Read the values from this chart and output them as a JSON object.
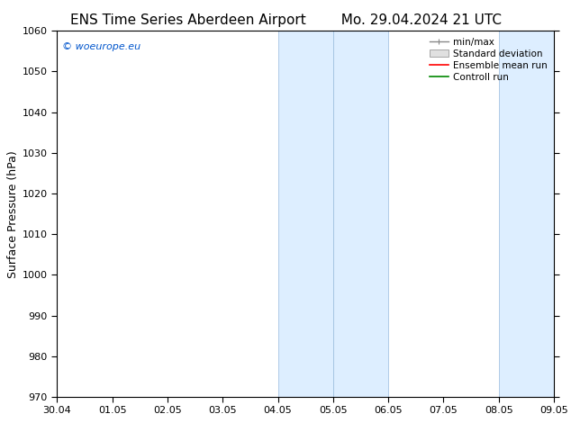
{
  "title_left": "ENS Time Series Aberdeen Airport",
  "title_right": "Mo. 29.04.2024 21 UTC",
  "ylabel": "Surface Pressure (hPa)",
  "ylim": [
    970,
    1060
  ],
  "yticks": [
    970,
    980,
    990,
    1000,
    1010,
    1020,
    1030,
    1040,
    1050,
    1060
  ],
  "xtick_labels": [
    "30.04",
    "01.05",
    "02.05",
    "03.05",
    "04.05",
    "05.05",
    "06.05",
    "07.05",
    "08.05",
    "09.05"
  ],
  "n_ticks": 10,
  "watermark": "© woeurope.eu",
  "watermark_color": "#0055cc",
  "shaded_regions": [
    {
      "xstart": 4,
      "xend": 5
    },
    {
      "xstart": 5,
      "xend": 6
    },
    {
      "xstart": 8,
      "xend": 9
    },
    {
      "xstart": 9,
      "xend": 9.5
    }
  ],
  "shaded_color": "#ddeeff",
  "shaded_edge_color": "#99bbdd",
  "legend_labels": [
    "min/max",
    "Standard deviation",
    "Ensemble mean run",
    "Controll run"
  ],
  "minmax_color": "#888888",
  "std_dev_color": "#cccccc",
  "ensemble_color": "#ff0000",
  "control_color": "#008800",
  "background_color": "#ffffff",
  "title_fontsize": 11,
  "axis_label_fontsize": 9,
  "tick_fontsize": 8,
  "legend_fontsize": 7.5
}
